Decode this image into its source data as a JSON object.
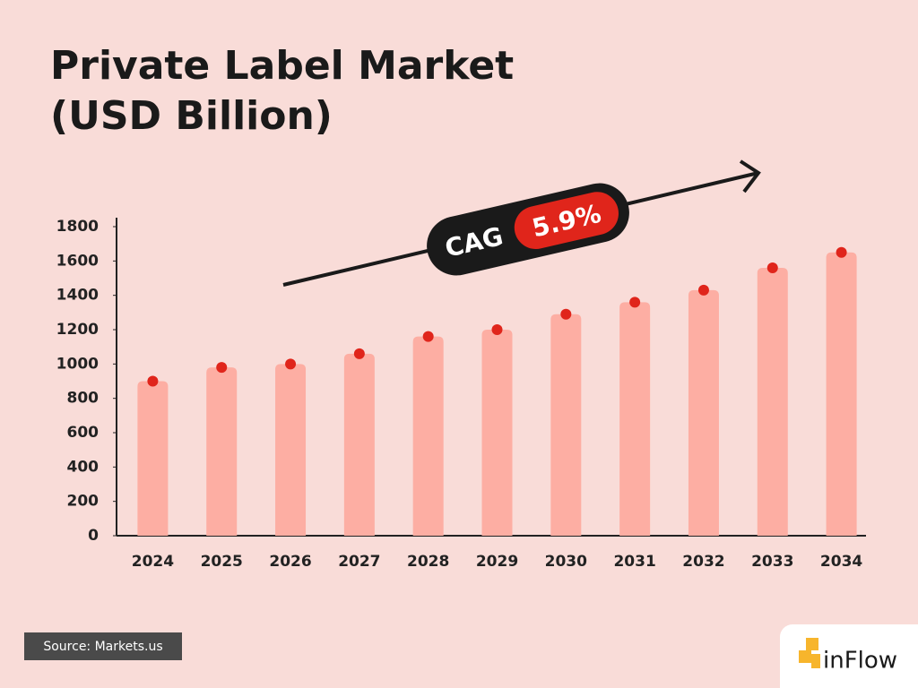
{
  "chart_data": {
    "type": "bar",
    "title": [
      "Private Label Market",
      "(USD Billion)"
    ],
    "categories": [
      "2024",
      "2025",
      "2026",
      "2027",
      "2028",
      "2029",
      "2030",
      "2031",
      "2032",
      "2033",
      "2034"
    ],
    "values": [
      900,
      980,
      1000,
      1060,
      1160,
      1200,
      1290,
      1360,
      1430,
      1560,
      1650
    ],
    "color": "#fdaea3",
    "dot_color": "#e0251b",
    "ylim": [
      0,
      1800
    ],
    "yticks": [
      0,
      200,
      400,
      600,
      800,
      1000,
      1200,
      1400,
      1600,
      1800
    ],
    "annotation": {
      "label": "CAG",
      "value": "5.9%"
    }
  },
  "source": "Source: Markets.us",
  "logo": "inFlow"
}
